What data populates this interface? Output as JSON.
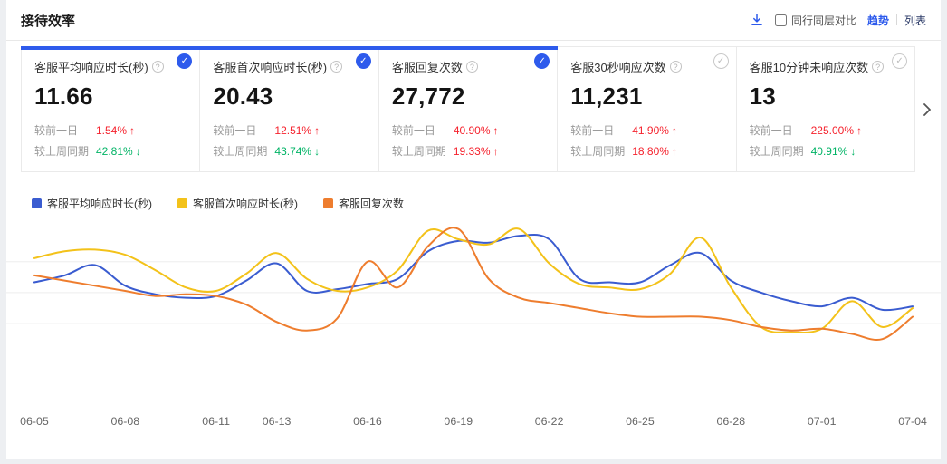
{
  "header": {
    "title": "接待效率",
    "compare_label": "同行同层对比",
    "view_trend": "趋势",
    "view_list": "列表"
  },
  "icons": {
    "check": "✓",
    "question": "?",
    "up": "↑",
    "down": "↓"
  },
  "cards": [
    {
      "title": "客服平均响应时长(秒)",
      "value": "11.66",
      "selected": true,
      "compares": [
        {
          "label": "较前一日",
          "value": "1.54%",
          "direction": "up"
        },
        {
          "label": "较上周同期",
          "value": "42.81%",
          "direction": "down"
        }
      ]
    },
    {
      "title": "客服首次响应时长(秒)",
      "value": "20.43",
      "selected": true,
      "compares": [
        {
          "label": "较前一日",
          "value": "12.51%",
          "direction": "up"
        },
        {
          "label": "较上周同期",
          "value": "43.74%",
          "direction": "down"
        }
      ]
    },
    {
      "title": "客服回复次数",
      "value": "27,772",
      "selected": true,
      "compares": [
        {
          "label": "较前一日",
          "value": "40.90%",
          "direction": "up"
        },
        {
          "label": "较上周同期",
          "value": "19.33%",
          "direction": "up"
        }
      ]
    },
    {
      "title": "客服30秒响应次数",
      "value": "11,231",
      "selected": false,
      "compares": [
        {
          "label": "较前一日",
          "value": "41.90%",
          "direction": "up"
        },
        {
          "label": "较上周同期",
          "value": "18.80%",
          "direction": "up"
        }
      ]
    },
    {
      "title": "客服10分钟未响应次数",
      "value": "13",
      "selected": false,
      "compares": [
        {
          "label": "较前一日",
          "value": "225.00%",
          "direction": "up"
        },
        {
          "label": "较上周同期",
          "value": "40.91%",
          "direction": "down"
        }
      ]
    }
  ],
  "colors": {
    "accent": "#2e5bec",
    "up_red": "#f5222d",
    "down_green": "#00b365"
  },
  "chart_data": {
    "type": "line",
    "x": [
      "06-05",
      "06-06",
      "06-07",
      "06-08",
      "06-09",
      "06-10",
      "06-11",
      "06-12",
      "06-13",
      "06-14",
      "06-15",
      "06-16",
      "06-17",
      "06-18",
      "06-19",
      "06-20",
      "06-21",
      "06-22",
      "06-23",
      "06-24",
      "06-25",
      "06-26",
      "06-27",
      "06-28",
      "06-29",
      "06-30",
      "07-01",
      "07-02",
      "07-03",
      "07-04"
    ],
    "x_tick_labels": [
      "06-05",
      "06-08",
      "06-11",
      "06-13",
      "06-16",
      "06-19",
      "06-22",
      "06-25",
      "06-28",
      "07-01",
      "07-04"
    ],
    "x_tick_indices": [
      0,
      3,
      6,
      8,
      11,
      14,
      17,
      20,
      23,
      26,
      29
    ],
    "series": [
      {
        "name": "客服平均响应时长(秒)",
        "color": "#3a5cd0",
        "values": [
          65,
          69,
          75,
          63,
          58,
          56,
          57,
          66,
          76,
          60,
          61,
          64,
          67,
          83,
          89,
          88,
          92,
          90,
          67,
          65,
          65,
          75,
          82,
          66,
          59,
          54,
          51,
          56,
          49,
          51
        ]
      },
      {
        "name": "客服首次响应时长(秒)",
        "color": "#f3c21a",
        "values": [
          79,
          83,
          84,
          81,
          72,
          62,
          60,
          70,
          82,
          67,
          60,
          62,
          72,
          95,
          90,
          87,
          96,
          76,
          64,
          62,
          61,
          70,
          91,
          62,
          39,
          36,
          38,
          54,
          39,
          50
        ]
      },
      {
        "name": "客服回复次数",
        "color": "#ee7d2e",
        "values": [
          69,
          66,
          63,
          60,
          57,
          58,
          57,
          52,
          42,
          37,
          44,
          77,
          62,
          86,
          96,
          67,
          56,
          53,
          50,
          47,
          45,
          45,
          45,
          43,
          39,
          37,
          38,
          35,
          32,
          45
        ]
      }
    ],
    "ylim": [
      0,
      100
    ],
    "y_axis_visible": false,
    "grid": true,
    "gridline_values": [
      41,
      59,
      77
    ],
    "legend_position": "top-left"
  }
}
